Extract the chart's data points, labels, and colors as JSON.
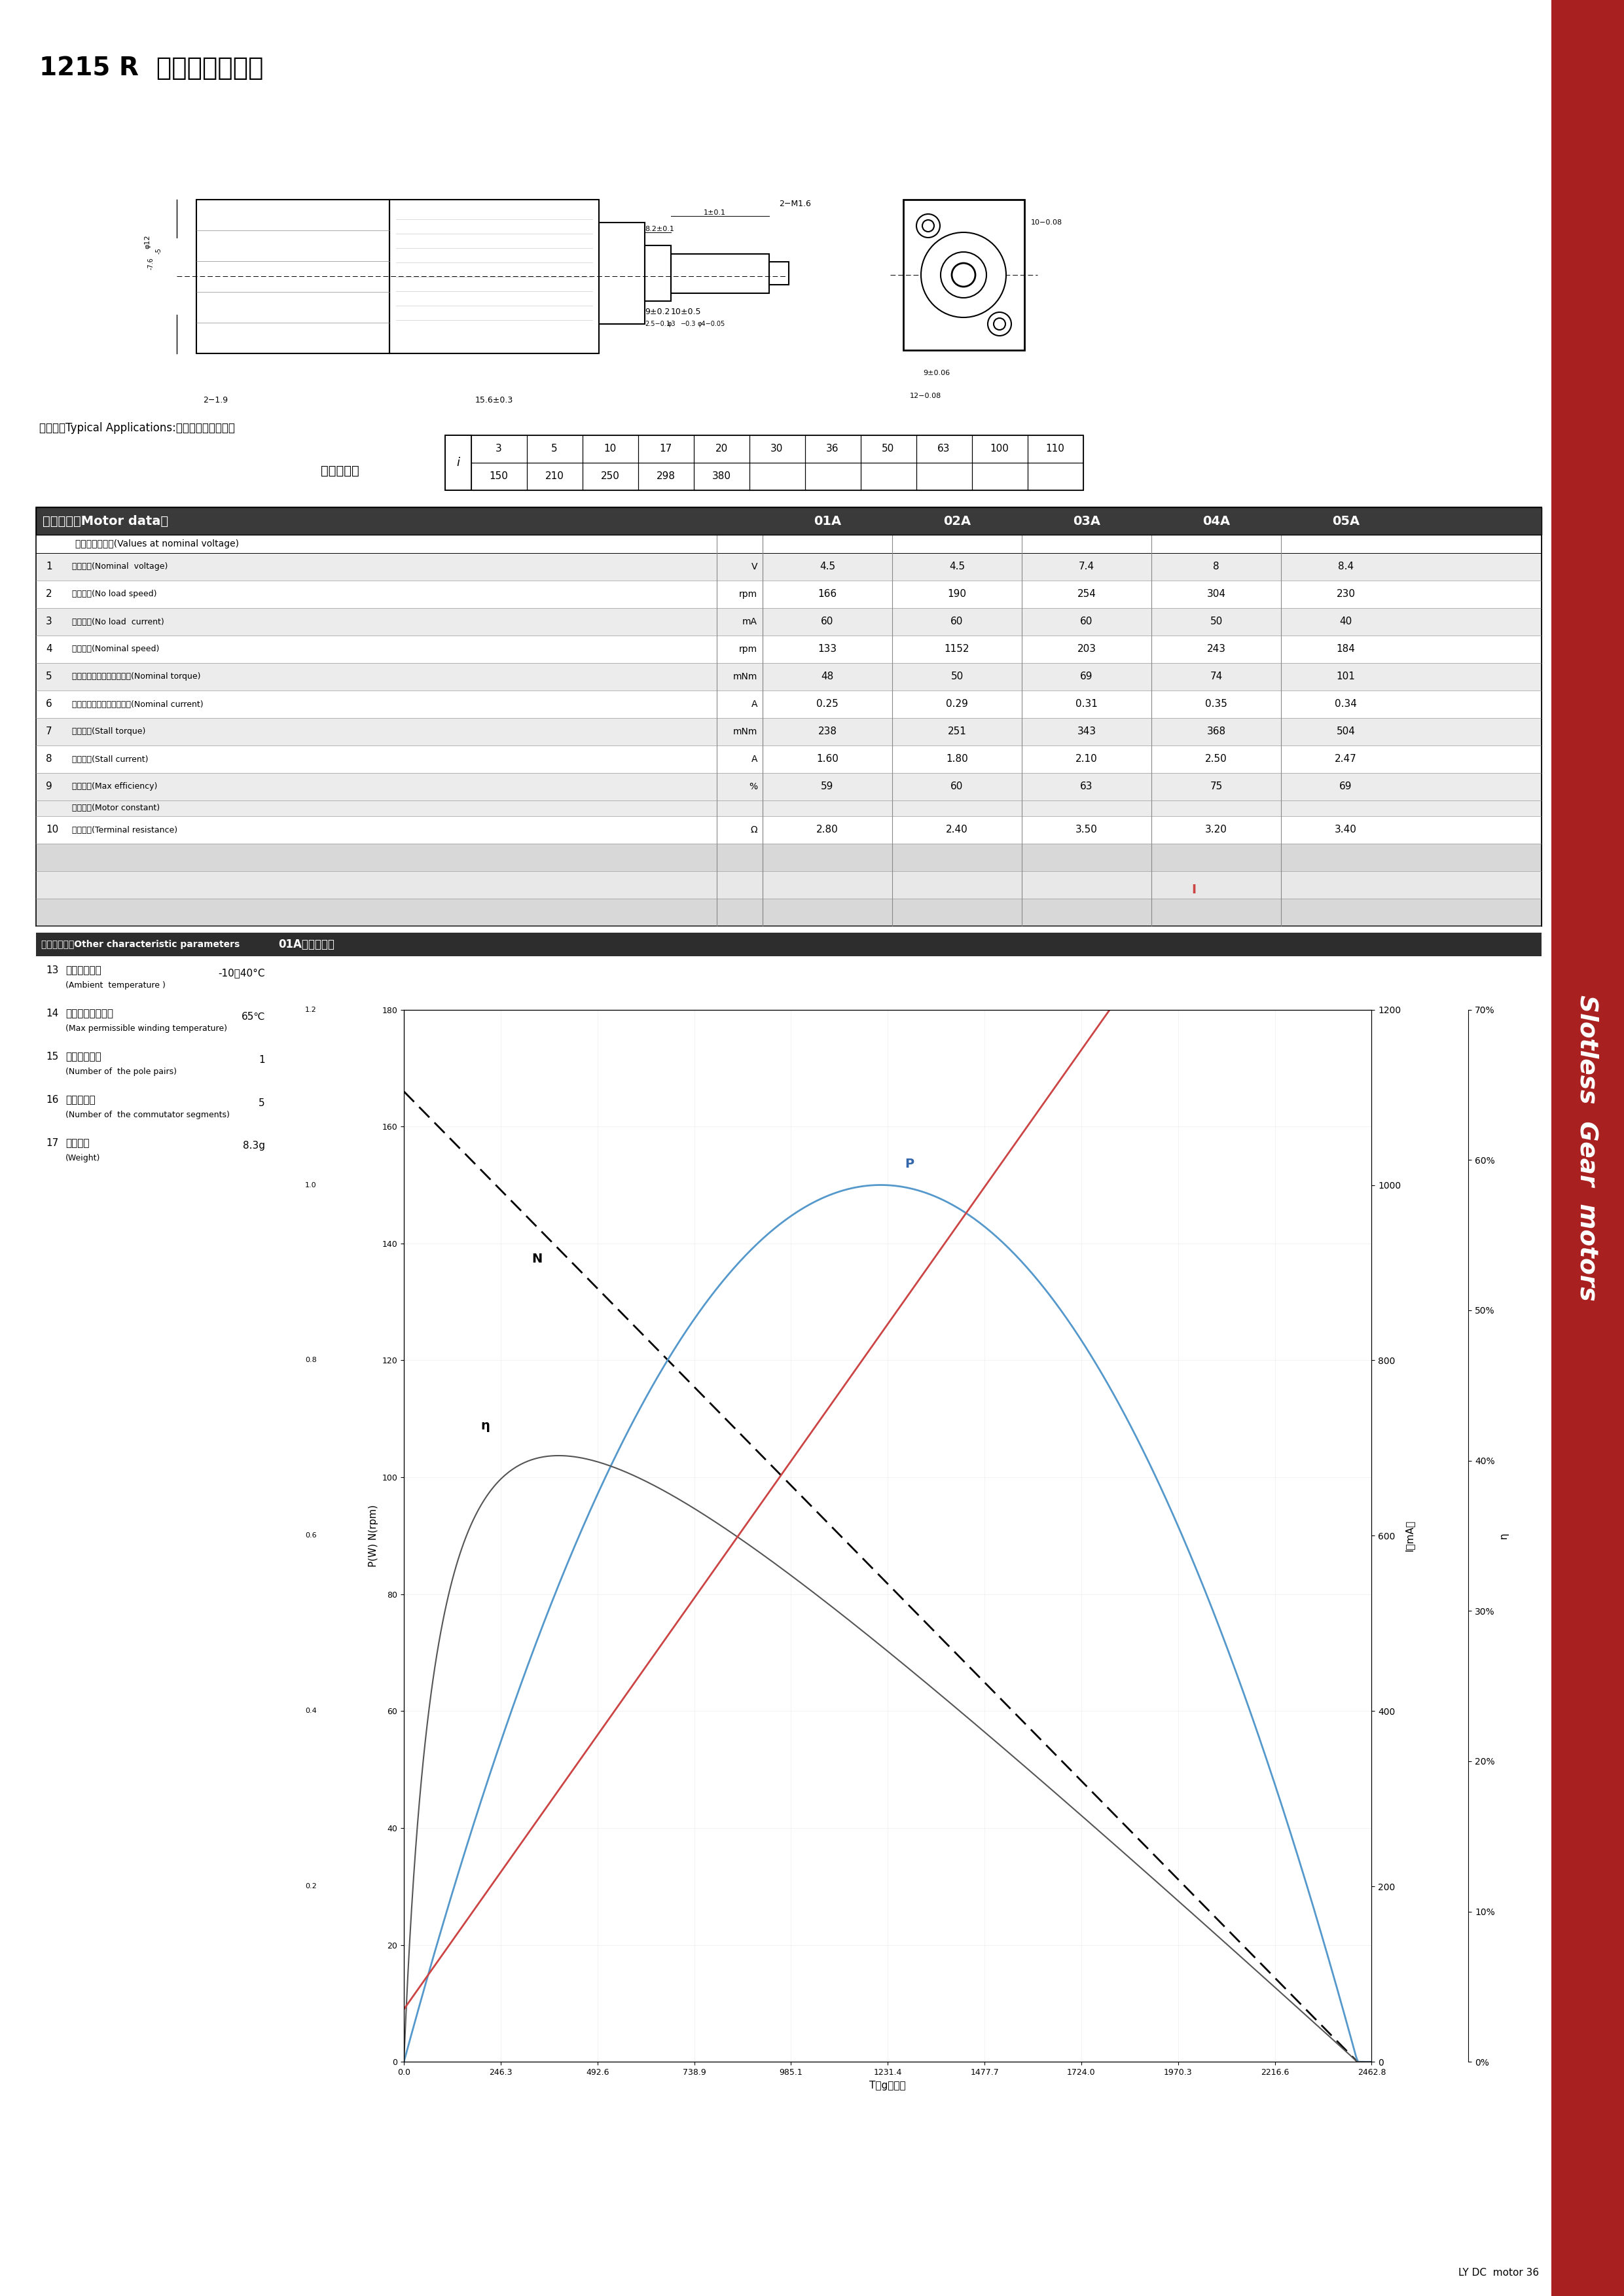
{
  "title": "1215 R  空心杯减速电机",
  "sidebar_color": "#a82020",
  "sidebar_text": "Slotless  Gear  motors",
  "typical_app": "典型应用Typical Applications:舐机、智能小机器人",
  "gear_ratio_label": "齿轮减速比",
  "gear_ratio_i": "i",
  "gear_row1": [
    "3",
    "5",
    "10",
    "17",
    "20",
    "30",
    "36",
    "50",
    "63",
    "100",
    "110"
  ],
  "gear_row2": [
    "150",
    "210",
    "250",
    "298",
    "380",
    "",
    "",
    "",
    "",
    "",
    ""
  ],
  "motor_header": "电机参数（Motor data）",
  "motor_cols": [
    "01A",
    "02A",
    "03A",
    "04A",
    "05A"
  ],
  "motor_subheader": "顆定电压下数值(Values at nominal voltage)",
  "motor_rows": [
    {
      "n": "1",
      "label": "顆定电压(Nominal  voltage)",
      "unit": "V",
      "vals": [
        "4.5",
        "4.5",
        "7.4",
        "8",
        "8.4"
      ]
    },
    {
      "n": "2",
      "label": "空载转速(No load speed)",
      "unit": "rpm",
      "vals": [
        "166",
        "190",
        "254",
        "304",
        "230"
      ]
    },
    {
      "n": "3",
      "label": "空载电流(No load  current)",
      "unit": "mA",
      "vals": [
        "60",
        "60",
        "60",
        "50",
        "40"
      ]
    },
    {
      "n": "4",
      "label": "顆定转速(Nominal speed)",
      "unit": "rpm",
      "vals": [
        "133",
        "1152",
        "203",
        "243",
        "184"
      ]
    },
    {
      "n": "5",
      "label": "顆定扁矩（最大连续转矩）(Nominal torque)",
      "unit": "mNm",
      "vals": [
        "48",
        "50",
        "69",
        "74",
        "101"
      ]
    },
    {
      "n": "6",
      "label": "顆定电流（最大连续电流）(Nominal current)",
      "unit": "A",
      "vals": [
        "0.25",
        "0.29",
        "0.31",
        "0.35",
        "0.34"
      ]
    },
    {
      "n": "7",
      "label": "堵转扁矩(Stall torque)",
      "unit": "mNm",
      "vals": [
        "238",
        "251",
        "343",
        "368",
        "504"
      ]
    },
    {
      "n": "8",
      "label": "堵转电流(Stall current)",
      "unit": "A",
      "vals": [
        "1.60",
        "1.80",
        "2.10",
        "2.50",
        "2.47"
      ]
    },
    {
      "n": "9",
      "label": "最大效率(Max efficiency)",
      "unit": "%",
      "vals": [
        "59",
        "60",
        "63",
        "75",
        "69"
      ]
    },
    {
      "n": "10",
      "label": "相间电阻(Terminal resistance)",
      "unit": "Ω",
      "vals": [
        "2.80",
        "2.40",
        "3.50",
        "3.20",
        "3.40"
      ]
    }
  ],
  "motor_constant": "电机常数(Motor constant)",
  "other_header_left": "其它特性参数Other characteristic parameters",
  "other_header_right": "01A电机曲线图",
  "other_params": [
    {
      "n": "13",
      "name": "环境温度范围",
      "sub": "(Ambient  temperature )",
      "val": "-10～40°C"
    },
    {
      "n": "14",
      "name": "绕组最高允许温度",
      "sub": "(Max permissible winding temperature)",
      "val": "65℃"
    },
    {
      "n": "15",
      "name": "电极磁极对数",
      "sub": "(Number of  the pole pairs)",
      "val": "1"
    },
    {
      "n": "16",
      "name": "换向器片数",
      "sub": "(Number of  the commutator segments)",
      "val": "5"
    },
    {
      "n": "17",
      "name": "电机质量",
      "sub": "(Weight)",
      "val": "8.3g"
    }
  ],
  "graph_left_label": "P(W) N(rpm)",
  "graph_right_label1": "I（mA）",
  "graph_right_label2": "η",
  "graph_xlabel": "T（g．㏘）",
  "graph_x_ticks": [
    0.0,
    246.3,
    492.6,
    738.9,
    985.1,
    1231.4,
    1477.7,
    1724.0,
    1970.3,
    2216.6,
    2462.8
  ],
  "graph_x_labels": [
    "0.0",
    "246.3",
    "492.6",
    "738.9",
    "985.1",
    "1231.4",
    "1477.7",
    "1724.0",
    "1970.3",
    "2216.6",
    "2462.8"
  ],
  "graph_N_ticks": [
    0,
    20,
    40,
    60,
    80,
    100,
    120,
    140,
    160,
    180
  ],
  "graph_P_ticks": [
    0.2,
    0.4,
    0.6,
    0.8,
    1.0,
    1.2
  ],
  "graph_I_ticks": [
    0,
    200,
    400,
    600,
    800,
    1000,
    1200
  ],
  "graph_eta_ticks_str": [
    "0%",
    "10%",
    "20%",
    "30%",
    "40%",
    "50%",
    "60%",
    "70%"
  ],
  "graph_eta_ticks": [
    0,
    10,
    20,
    30,
    40,
    50,
    60,
    70
  ],
  "footer": "LY DC  motor 36",
  "N0": 166,
  "I0": 60,
  "Istall": 1600,
  "Tstall_mNm": 238,
  "Vnom": 4.5
}
